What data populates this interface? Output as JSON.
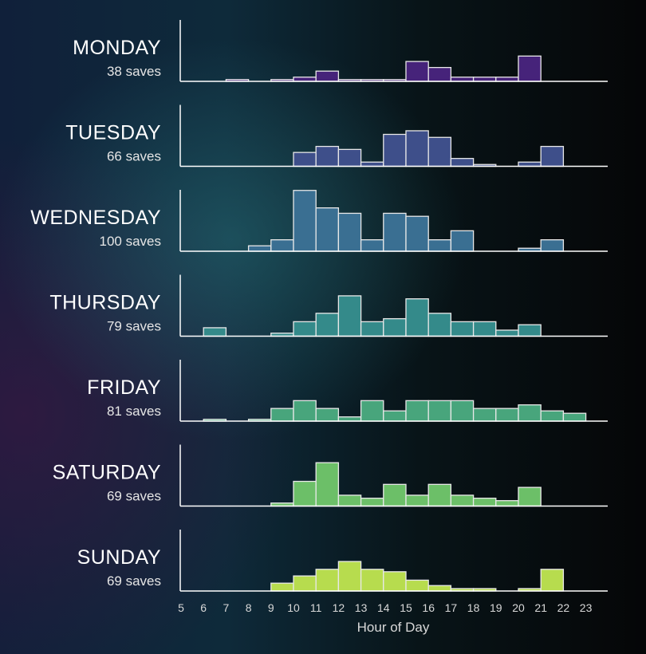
{
  "chart_data": {
    "type": "bar",
    "subtype": "small-multiple histograms",
    "xlabel": "Hour of Day",
    "xlim": [
      5,
      24
    ],
    "x_ticks": [
      5,
      6,
      7,
      8,
      9,
      10,
      11,
      12,
      13,
      14,
      15,
      16,
      17,
      18,
      19,
      20,
      21,
      22,
      23
    ],
    "bin_width_hours": 1,
    "grid": false,
    "panels": [
      {
        "day": "MONDAY",
        "subtitle": "38 saves",
        "color": "#46237a",
        "bins": [
          {
            "hour": 7,
            "count": 0.3
          },
          {
            "hour": 9,
            "count": 0.3
          },
          {
            "hour": 10,
            "count": 0.7
          },
          {
            "hour": 11,
            "count": 1.7
          },
          {
            "hour": 12,
            "count": 0.3
          },
          {
            "hour": 13,
            "count": 0.3
          },
          {
            "hour": 14,
            "count": 0.3
          },
          {
            "hour": 15,
            "count": 3.3
          },
          {
            "hour": 16,
            "count": 2.3
          },
          {
            "hour": 17,
            "count": 0.7
          },
          {
            "hour": 18,
            "count": 0.7
          },
          {
            "hour": 19,
            "count": 0.7
          },
          {
            "hour": 20,
            "count": 4.2
          }
        ]
      },
      {
        "day": "TUESDAY",
        "subtitle": "66 saves",
        "color": "#3e4f8a",
        "bins": [
          {
            "hour": 10,
            "count": 2.3
          },
          {
            "hour": 11,
            "count": 3.3
          },
          {
            "hour": 12,
            "count": 2.8
          },
          {
            "hour": 13,
            "count": 0.7
          },
          {
            "hour": 14,
            "count": 5.3
          },
          {
            "hour": 15,
            "count": 5.9
          },
          {
            "hour": 16,
            "count": 4.8
          },
          {
            "hour": 17,
            "count": 1.3
          },
          {
            "hour": 18,
            "count": 0.3
          },
          {
            "hour": 20,
            "count": 0.7
          },
          {
            "hour": 21,
            "count": 3.3
          }
        ]
      },
      {
        "day": "WEDNESDAY",
        "subtitle": "100 saves",
        "color": "#3a6f92",
        "bins": [
          {
            "hour": 8,
            "count": 0.9
          },
          {
            "hour": 9,
            "count": 1.9
          },
          {
            "hour": 10,
            "count": 10.1
          },
          {
            "hour": 11,
            "count": 7.2
          },
          {
            "hour": 12,
            "count": 6.3
          },
          {
            "hour": 13,
            "count": 1.9
          },
          {
            "hour": 14,
            "count": 6.3
          },
          {
            "hour": 15,
            "count": 5.8
          },
          {
            "hour": 16,
            "count": 1.9
          },
          {
            "hour": 17,
            "count": 3.4
          },
          {
            "hour": 20,
            "count": 0.5
          },
          {
            "hour": 21,
            "count": 1.9
          }
        ]
      },
      {
        "day": "THURSDAY",
        "subtitle": "79 saves",
        "color": "#348a8a",
        "bins": [
          {
            "hour": 6,
            "count": 1.4
          },
          {
            "hour": 9,
            "count": 0.5
          },
          {
            "hour": 10,
            "count": 2.4
          },
          {
            "hour": 11,
            "count": 3.8
          },
          {
            "hour": 12,
            "count": 6.7
          },
          {
            "hour": 13,
            "count": 2.4
          },
          {
            "hour": 14,
            "count": 2.9
          },
          {
            "hour": 15,
            "count": 6.2
          },
          {
            "hour": 16,
            "count": 3.8
          },
          {
            "hour": 17,
            "count": 2.4
          },
          {
            "hour": 18,
            "count": 2.4
          },
          {
            "hour": 19,
            "count": 1.0
          },
          {
            "hour": 20,
            "count": 1.9
          }
        ]
      },
      {
        "day": "FRIDAY",
        "subtitle": "81 saves",
        "color": "#48a57c",
        "bins": [
          {
            "hour": 6,
            "count": 0.3
          },
          {
            "hour": 8,
            "count": 0.3
          },
          {
            "hour": 9,
            "count": 2.1
          },
          {
            "hour": 10,
            "count": 3.4
          },
          {
            "hour": 11,
            "count": 2.1
          },
          {
            "hour": 12,
            "count": 0.7
          },
          {
            "hour": 13,
            "count": 3.4
          },
          {
            "hour": 14,
            "count": 1.7
          },
          {
            "hour": 15,
            "count": 3.4
          },
          {
            "hour": 16,
            "count": 3.4
          },
          {
            "hour": 17,
            "count": 3.4
          },
          {
            "hour": 18,
            "count": 2.1
          },
          {
            "hour": 19,
            "count": 2.1
          },
          {
            "hour": 20,
            "count": 2.7
          },
          {
            "hour": 21,
            "count": 1.7
          },
          {
            "hour": 22,
            "count": 1.3
          }
        ]
      },
      {
        "day": "SATURDAY",
        "subtitle": "69 saves",
        "color": "#6cbf68",
        "bins": [
          {
            "hour": 9,
            "count": 0.5
          },
          {
            "hour": 10,
            "count": 4.1
          },
          {
            "hour": 11,
            "count": 7.2
          },
          {
            "hour": 12,
            "count": 1.8
          },
          {
            "hour": 13,
            "count": 1.3
          },
          {
            "hour": 14,
            "count": 3.6
          },
          {
            "hour": 15,
            "count": 1.8
          },
          {
            "hour": 16,
            "count": 3.6
          },
          {
            "hour": 17,
            "count": 1.8
          },
          {
            "hour": 18,
            "count": 1.3
          },
          {
            "hour": 19,
            "count": 0.9
          },
          {
            "hour": 20,
            "count": 3.1
          }
        ]
      },
      {
        "day": "SUNDAY",
        "subtitle": "69 saves",
        "color": "#b7dc4e",
        "bins": [
          {
            "hour": 9,
            "count": 1.3
          },
          {
            "hour": 10,
            "count": 2.5
          },
          {
            "hour": 11,
            "count": 3.6
          },
          {
            "hour": 12,
            "count": 4.9
          },
          {
            "hour": 13,
            "count": 3.6
          },
          {
            "hour": 14,
            "count": 3.2
          },
          {
            "hour": 15,
            "count": 1.8
          },
          {
            "hour": 16,
            "count": 0.9
          },
          {
            "hour": 17,
            "count": 0.4
          },
          {
            "hour": 18,
            "count": 0.4
          },
          {
            "hour": 20,
            "count": 0.4
          },
          {
            "hour": 21,
            "count": 3.6
          }
        ]
      }
    ]
  }
}
